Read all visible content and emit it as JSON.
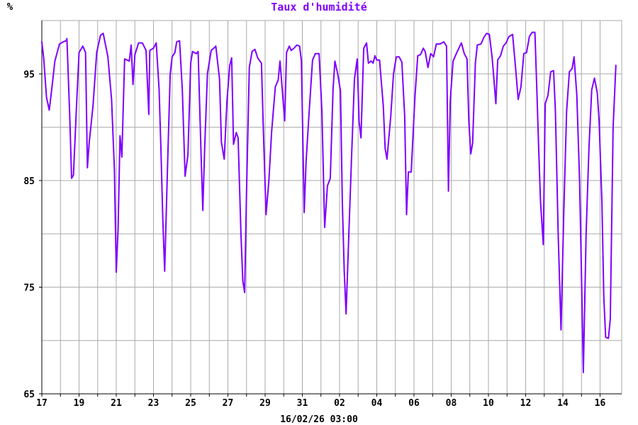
{
  "chart_data": {
    "type": "line",
    "title": "Taux d'humidité",
    "ylabel": "%",
    "xlabel": "16/02/26 03:00",
    "ylim": [
      65,
      100
    ],
    "y_ticks": [
      65,
      75,
      85,
      95
    ],
    "y_grid": [
      65,
      70,
      75,
      80,
      85,
      90,
      95,
      100
    ],
    "xlim": [
      0,
      30.3
    ],
    "x_tick_labels": [
      "17",
      "19",
      "21",
      "23",
      "25",
      "27",
      "29",
      "31",
      "02",
      "04",
      "06",
      "08",
      "10",
      "12",
      "14",
      "16"
    ],
    "x_tick_days": [
      0,
      2,
      4,
      6,
      8,
      10,
      12,
      14,
      16,
      18,
      20,
      22,
      24,
      26,
      28,
      30
    ],
    "grid": true,
    "colors": {
      "line": "#7f00ff",
      "title": "#7f00ff",
      "grid": "#aaaaaa",
      "axis": "#000000"
    },
    "series": [
      {
        "values": [
          [
            0.0,
            98.0
          ],
          [
            0.1,
            96.5
          ],
          [
            0.25,
            92.8
          ],
          [
            0.4,
            91.6
          ],
          [
            0.55,
            93.8
          ],
          [
            0.7,
            96.2
          ],
          [
            0.95,
            97.8
          ],
          [
            1.15,
            98.0
          ],
          [
            1.3,
            98.1
          ],
          [
            1.35,
            98.3
          ],
          [
            1.5,
            91.0
          ],
          [
            1.6,
            85.2
          ],
          [
            1.7,
            85.5
          ],
          [
            1.85,
            91.5
          ],
          [
            2.0,
            97.0
          ],
          [
            2.2,
            97.6
          ],
          [
            2.35,
            97.0
          ],
          [
            2.45,
            86.2
          ],
          [
            2.55,
            88.6
          ],
          [
            2.75,
            92.0
          ],
          [
            2.95,
            97.0
          ],
          [
            3.15,
            98.6
          ],
          [
            3.3,
            98.8
          ],
          [
            3.55,
            96.6
          ],
          [
            3.75,
            92.6
          ],
          [
            3.9,
            86.0
          ],
          [
            4.0,
            76.4
          ],
          [
            4.1,
            80.5
          ],
          [
            4.2,
            89.2
          ],
          [
            4.3,
            87.2
          ],
          [
            4.45,
            96.4
          ],
          [
            4.7,
            96.2
          ],
          [
            4.8,
            97.7
          ],
          [
            4.9,
            94.0
          ],
          [
            5.0,
            96.8
          ],
          [
            5.2,
            97.9
          ],
          [
            5.4,
            97.9
          ],
          [
            5.6,
            97.2
          ],
          [
            5.75,
            91.2
          ],
          [
            5.8,
            97.2
          ],
          [
            6.0,
            97.4
          ],
          [
            6.15,
            97.9
          ],
          [
            6.3,
            93.6
          ],
          [
            6.4,
            88.0
          ],
          [
            6.5,
            81.5
          ],
          [
            6.6,
            76.5
          ],
          [
            6.75,
            86.0
          ],
          [
            6.9,
            95.0
          ],
          [
            7.0,
            96.6
          ],
          [
            7.15,
            97.0
          ],
          [
            7.25,
            98.0
          ],
          [
            7.4,
            98.1
          ],
          [
            7.55,
            93.5
          ],
          [
            7.7,
            85.4
          ],
          [
            7.85,
            87.4
          ],
          [
            8.0,
            96.0
          ],
          [
            8.1,
            97.1
          ],
          [
            8.3,
            96.9
          ],
          [
            8.4,
            97.1
          ],
          [
            8.55,
            88.0
          ],
          [
            8.65,
            82.2
          ],
          [
            8.75,
            88.0
          ],
          [
            8.9,
            95.0
          ],
          [
            9.1,
            97.2
          ],
          [
            9.3,
            97.5
          ],
          [
            9.35,
            97.6
          ],
          [
            9.55,
            94.5
          ],
          [
            9.65,
            88.6
          ],
          [
            9.8,
            87.0
          ],
          [
            9.95,
            92.5
          ],
          [
            10.1,
            95.8
          ],
          [
            10.2,
            96.5
          ],
          [
            10.3,
            88.4
          ],
          [
            10.45,
            89.5
          ],
          [
            10.55,
            89.0
          ],
          [
            10.7,
            80.0
          ],
          [
            10.8,
            75.6
          ],
          [
            10.9,
            74.5
          ],
          [
            11.0,
            84.0
          ],
          [
            11.15,
            95.6
          ],
          [
            11.3,
            97.1
          ],
          [
            11.45,
            97.3
          ],
          [
            11.6,
            96.5
          ],
          [
            11.8,
            96.0
          ],
          [
            11.9,
            90.0
          ],
          [
            12.05,
            81.8
          ],
          [
            12.2,
            85.0
          ],
          [
            12.35,
            89.6
          ],
          [
            12.55,
            93.8
          ],
          [
            12.7,
            94.4
          ],
          [
            12.8,
            96.2
          ],
          [
            12.9,
            94.0
          ],
          [
            13.05,
            90.6
          ],
          [
            13.15,
            97.0
          ],
          [
            13.3,
            97.6
          ],
          [
            13.4,
            97.2
          ],
          [
            13.55,
            97.4
          ],
          [
            13.7,
            97.7
          ],
          [
            13.85,
            97.6
          ],
          [
            13.95,
            96.2
          ],
          [
            14.1,
            82.0
          ],
          [
            14.2,
            86.8
          ],
          [
            14.35,
            91.0
          ],
          [
            14.55,
            96.3
          ],
          [
            14.7,
            96.9
          ],
          [
            14.9,
            96.9
          ],
          [
            15.05,
            91.5
          ],
          [
            15.2,
            80.6
          ],
          [
            15.35,
            84.5
          ],
          [
            15.5,
            85.2
          ],
          [
            15.65,
            93.5
          ],
          [
            15.75,
            96.2
          ],
          [
            15.9,
            95.0
          ],
          [
            16.05,
            93.4
          ],
          [
            16.15,
            83.0
          ],
          [
            16.25,
            76.5
          ],
          [
            16.35,
            72.5
          ],
          [
            16.5,
            80.0
          ],
          [
            16.65,
            87.5
          ],
          [
            16.8,
            94.5
          ],
          [
            16.95,
            96.4
          ],
          [
            17.05,
            90.5
          ],
          [
            17.15,
            89.0
          ],
          [
            17.3,
            97.4
          ],
          [
            17.45,
            97.9
          ],
          [
            17.55,
            96.0
          ],
          [
            17.7,
            96.2
          ],
          [
            17.8,
            96.0
          ],
          [
            17.9,
            96.7
          ],
          [
            18.0,
            96.3
          ],
          [
            18.15,
            96.3
          ],
          [
            18.35,
            92.0
          ],
          [
            18.45,
            88.0
          ],
          [
            18.55,
            87.0
          ],
          [
            18.75,
            91.0
          ],
          [
            18.9,
            95.0
          ],
          [
            19.05,
            96.6
          ],
          [
            19.2,
            96.6
          ],
          [
            19.35,
            96.1
          ],
          [
            19.5,
            91.0
          ],
          [
            19.6,
            81.8
          ],
          [
            19.7,
            85.8
          ],
          [
            19.85,
            85.8
          ],
          [
            20.05,
            92.8
          ],
          [
            20.2,
            96.7
          ],
          [
            20.35,
            96.8
          ],
          [
            20.5,
            97.4
          ],
          [
            20.6,
            97.1
          ],
          [
            20.75,
            95.6
          ],
          [
            20.9,
            96.9
          ],
          [
            21.05,
            96.6
          ],
          [
            21.2,
            97.8
          ],
          [
            21.4,
            97.8
          ],
          [
            21.6,
            98.0
          ],
          [
            21.75,
            97.6
          ],
          [
            21.85,
            84.0
          ],
          [
            21.95,
            92.5
          ],
          [
            22.1,
            96.2
          ],
          [
            22.3,
            97.0
          ],
          [
            22.55,
            97.9
          ],
          [
            22.7,
            96.9
          ],
          [
            22.85,
            96.4
          ],
          [
            22.95,
            90.5
          ],
          [
            23.05,
            87.5
          ],
          [
            23.15,
            88.5
          ],
          [
            23.3,
            96.0
          ],
          [
            23.4,
            97.7
          ],
          [
            23.6,
            97.8
          ],
          [
            23.75,
            98.4
          ],
          [
            23.9,
            98.8
          ],
          [
            24.05,
            98.7
          ],
          [
            24.2,
            96.5
          ],
          [
            24.4,
            92.2
          ],
          [
            24.5,
            96.3
          ],
          [
            24.65,
            96.7
          ],
          [
            24.8,
            97.6
          ],
          [
            24.95,
            97.9
          ],
          [
            25.1,
            98.5
          ],
          [
            25.3,
            98.7
          ],
          [
            25.45,
            95.7
          ],
          [
            25.6,
            92.6
          ],
          [
            25.75,
            93.8
          ],
          [
            25.9,
            96.9
          ],
          [
            26.05,
            97.0
          ],
          [
            26.2,
            98.5
          ],
          [
            26.35,
            98.9
          ],
          [
            26.5,
            98.9
          ],
          [
            26.6,
            93.5
          ],
          [
            26.7,
            88.0
          ],
          [
            26.8,
            83.0
          ],
          [
            26.95,
            79.0
          ],
          [
            27.05,
            92.2
          ],
          [
            27.2,
            93.0
          ],
          [
            27.35,
            95.2
          ],
          [
            27.5,
            95.3
          ],
          [
            27.6,
            91.5
          ],
          [
            27.75,
            80.0
          ],
          [
            27.9,
            71.0
          ],
          [
            28.05,
            82.0
          ],
          [
            28.2,
            91.5
          ],
          [
            28.35,
            95.2
          ],
          [
            28.5,
            95.5
          ],
          [
            28.6,
            96.6
          ],
          [
            28.75,
            93.0
          ],
          [
            28.9,
            85.0
          ],
          [
            29.0,
            76.0
          ],
          [
            29.1,
            67.0
          ],
          [
            29.25,
            80.0
          ],
          [
            29.4,
            88.0
          ],
          [
            29.55,
            93.5
          ],
          [
            29.7,
            94.6
          ],
          [
            29.85,
            93.2
          ],
          [
            29.95,
            90.5
          ],
          [
            30.1,
            83.0
          ],
          [
            30.2,
            74.0
          ],
          [
            30.3,
            70.3
          ],
          [
            30.45,
            70.2
          ],
          [
            30.55,
            72.0
          ],
          [
            30.7,
            90.0
          ],
          [
            30.85,
            95.8
          ]
        ]
      }
    ]
  }
}
